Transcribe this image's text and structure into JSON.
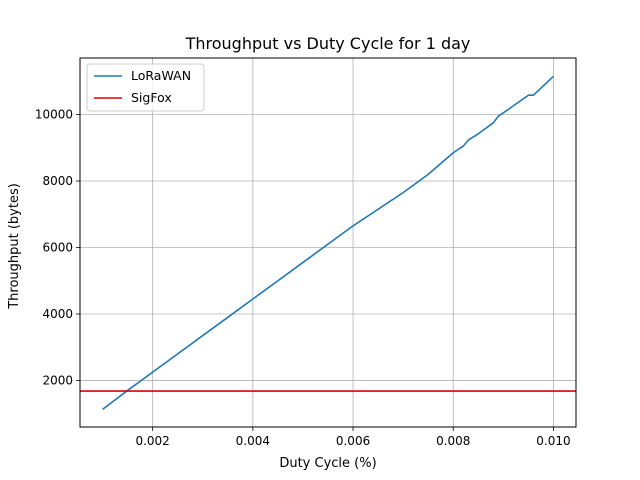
{
  "chart_data": {
    "type": "line",
    "title": "Throughput vs Duty Cycle for 1 day",
    "xlabel": "Duty Cycle (%)",
    "ylabel": "Throughput (bytes)",
    "xlim": [
      0.00055,
      0.01045
    ],
    "ylim": [
      600,
      11700
    ],
    "xticks": [
      0.002,
      0.004,
      0.006,
      0.008,
      0.01
    ],
    "xtick_labels": [
      "0.002",
      "0.004",
      "0.006",
      "0.008",
      "0.010"
    ],
    "yticks": [
      2000,
      4000,
      6000,
      8000,
      10000
    ],
    "ytick_labels": [
      "2000",
      "4000",
      "6000",
      "8000",
      "10000"
    ],
    "grid": true,
    "legend": {
      "position": "top-left"
    },
    "series": [
      {
        "name": "LoRaWAN",
        "color": "#1f77b4",
        "x": [
          0.001,
          0.0015,
          0.002,
          0.0025,
          0.003,
          0.0035,
          0.004,
          0.0045,
          0.005,
          0.0055,
          0.006,
          0.0065,
          0.007,
          0.0075,
          0.008,
          0.0082,
          0.0083,
          0.0085,
          0.0088,
          0.0089,
          0.009,
          0.0095,
          0.0096,
          0.01
        ],
        "y": [
          1130,
          1700,
          2250,
          2800,
          3350,
          3900,
          4450,
          5000,
          5550,
          6100,
          6650,
          7150,
          7650,
          8200,
          8850,
          9050,
          9230,
          9420,
          9750,
          9950,
          10050,
          10580,
          10580,
          11150
        ]
      },
      {
        "name": "SigFox",
        "color": "#e00000",
        "x": [
          0.00055,
          0.01045
        ],
        "y": [
          1680,
          1680
        ]
      }
    ]
  }
}
